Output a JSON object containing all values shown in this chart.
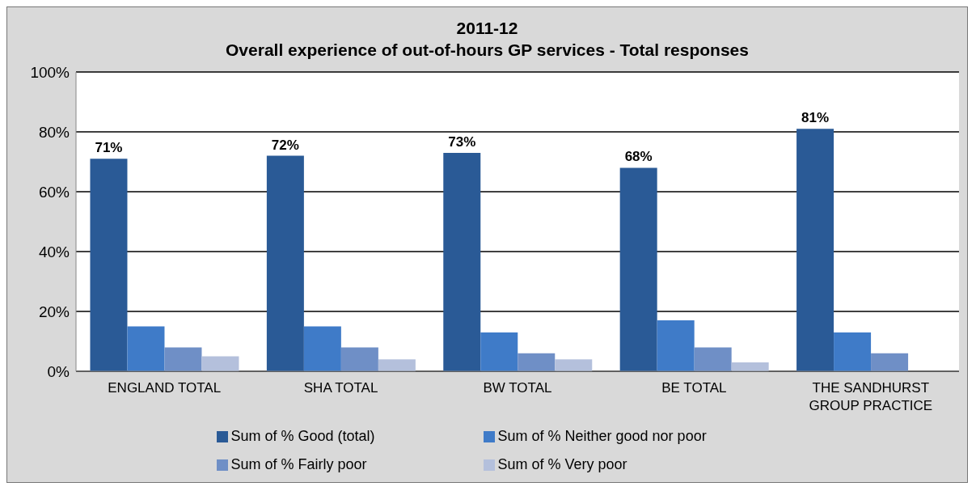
{
  "chart_data": {
    "type": "bar",
    "title": "2011-12",
    "subtitle": "Overall experience of out-of-hours GP services - Total responses",
    "categories": [
      "ENGLAND TOTAL",
      "SHA TOTAL",
      "BW TOTAL",
      "BE TOTAL",
      "THE SANDHURST GROUP PRACTICE"
    ],
    "series": [
      {
        "name": "Sum of % Good (total)",
        "color": "#2a5a96",
        "values": [
          71,
          72,
          73,
          68,
          81
        ],
        "value_labels": [
          "71%",
          "72%",
          "73%",
          "68%",
          "81%"
        ]
      },
      {
        "name": "Sum of % Neither good nor poor",
        "color": "#3f7bc8",
        "values": [
          15,
          15,
          13,
          17,
          13
        ]
      },
      {
        "name": "Sum of % Fairly poor",
        "color": "#6f8fc6",
        "values": [
          8,
          8,
          6,
          8,
          6
        ]
      },
      {
        "name": "Sum of % Very poor",
        "color": "#b4c0dc",
        "values": [
          5,
          4,
          4,
          3,
          null
        ]
      }
    ],
    "ylim": [
      0,
      100
    ],
    "yticks": [
      {
        "value": 0,
        "label": "0%"
      },
      {
        "value": 20,
        "label": "20%"
      },
      {
        "value": 40,
        "label": "40%"
      },
      {
        "value": 60,
        "label": "60%"
      },
      {
        "value": 80,
        "label": "80%"
      },
      {
        "value": 100,
        "label": "100%"
      }
    ],
    "grid": "y",
    "legend": "bottom"
  }
}
